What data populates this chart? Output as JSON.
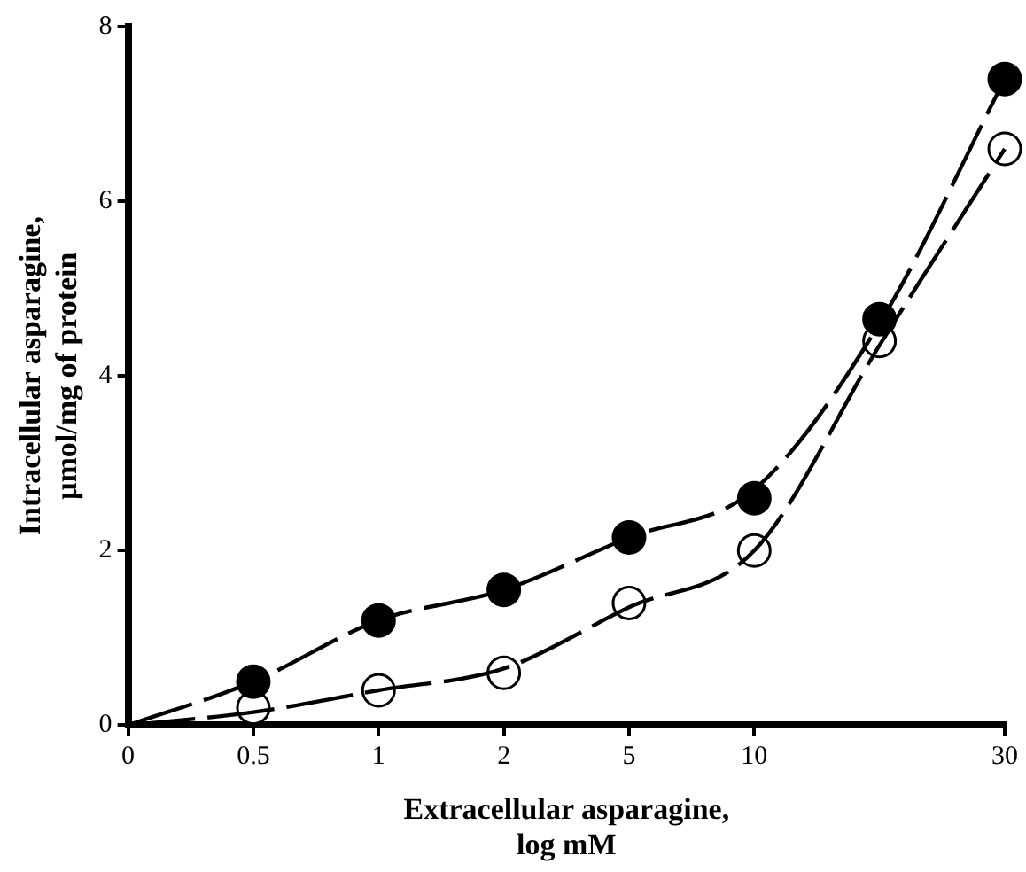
{
  "chart_data": {
    "type": "scatter",
    "xlabel": "Extracellular asparagine,\nlog mM",
    "ylabel": "Intracellular asparagine,\nμmol/mg of protein",
    "categories": [
      "0",
      "0.5",
      "1",
      "2",
      "5",
      "10",
      null,
      "30"
    ],
    "ylim": [
      0,
      8
    ],
    "yticks": [
      0,
      2,
      4,
      6,
      8
    ],
    "grid": false,
    "legend": false,
    "marker": "circle",
    "series": [
      {
        "type": "line",
        "color": "#000000",
        "line_style": "dashed",
        "marker": "none",
        "values": [
          0,
          0.5,
          1.2,
          1.55,
          2.15,
          2.7,
          4.6,
          7.4
        ]
      },
      {
        "type": "line",
        "color": "#000000",
        "line_style": "dashed",
        "marker": "none",
        "values": [
          0,
          0.15,
          0.4,
          0.65,
          1.35,
          2.0,
          4.35,
          6.6
        ]
      },
      {
        "type": "scatter",
        "color": "#000000",
        "values": [
          null,
          0.5,
          1.2,
          1.55,
          2.15,
          2.6,
          4.65,
          7.4
        ]
      },
      {
        "type": "scatter",
        "color": "#ffffff",
        "values": [
          null,
          0.2,
          0.4,
          0.6,
          1.4,
          2.0,
          4.4,
          6.6
        ]
      }
    ]
  }
}
